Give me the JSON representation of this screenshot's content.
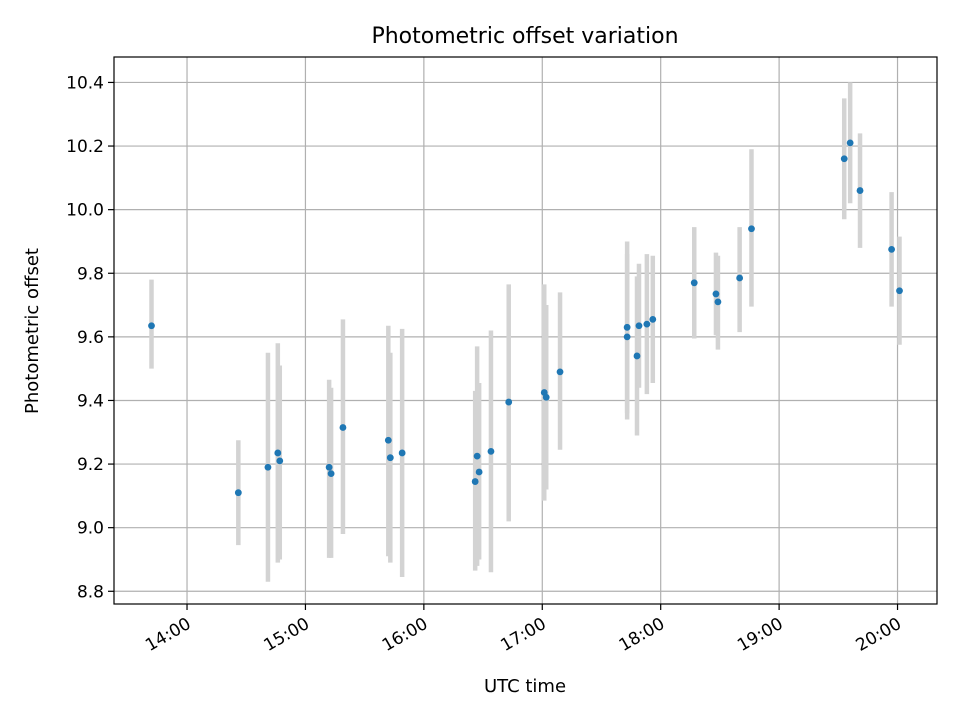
{
  "chart_data": {
    "type": "scatter",
    "title": "Photometric offset variation",
    "xlabel": "UTC time",
    "ylabel": "Photometric offset",
    "xlim": [
      "13:23",
      "20:20"
    ],
    "ylim": [
      8.76,
      10.48
    ],
    "xticks": [
      "14:00",
      "15:00",
      "16:00",
      "17:00",
      "18:00",
      "19:00",
      "20:00"
    ],
    "yticks": [
      "8.8",
      "9.0",
      "9.2",
      "9.4",
      "9.6",
      "9.8",
      "10.0",
      "10.2",
      "10.4"
    ],
    "grid": true,
    "colors": {
      "marker": "#1f77b4",
      "errorbar": "#d3d3d3",
      "grid": "#b0b0b0"
    },
    "points": [
      {
        "x": "13:42",
        "y": 9.635,
        "lo": 9.5,
        "hi": 9.78
      },
      {
        "x": "14:26",
        "y": 9.11,
        "lo": 8.945,
        "hi": 9.275
      },
      {
        "x": "14:41",
        "y": 9.19,
        "lo": 8.83,
        "hi": 9.55
      },
      {
        "x": "14:46",
        "y": 9.235,
        "lo": 8.89,
        "hi": 9.58
      },
      {
        "x": "14:47",
        "y": 9.21,
        "lo": 8.9,
        "hi": 9.51
      },
      {
        "x": "15:12",
        "y": 9.19,
        "lo": 8.905,
        "hi": 9.465
      },
      {
        "x": "15:13",
        "y": 9.17,
        "lo": 8.905,
        "hi": 9.44
      },
      {
        "x": "15:19",
        "y": 9.315,
        "lo": 8.98,
        "hi": 9.655
      },
      {
        "x": "15:42",
        "y": 9.275,
        "lo": 8.91,
        "hi": 9.635
      },
      {
        "x": "15:43",
        "y": 9.22,
        "lo": 8.89,
        "hi": 9.55
      },
      {
        "x": "15:49",
        "y": 9.235,
        "lo": 8.845,
        "hi": 9.625
      },
      {
        "x": "16:26",
        "y": 9.145,
        "lo": 8.865,
        "hi": 9.43
      },
      {
        "x": "16:27",
        "y": 9.225,
        "lo": 8.88,
        "hi": 9.57
      },
      {
        "x": "16:28",
        "y": 9.175,
        "lo": 8.9,
        "hi": 9.455
      },
      {
        "x": "16:34",
        "y": 9.24,
        "lo": 8.86,
        "hi": 9.62
      },
      {
        "x": "16:43",
        "y": 9.395,
        "lo": 9.02,
        "hi": 9.765
      },
      {
        "x": "17:01",
        "y": 9.425,
        "lo": 9.085,
        "hi": 9.765
      },
      {
        "x": "17:02",
        "y": 9.41,
        "lo": 9.12,
        "hi": 9.7
      },
      {
        "x": "17:09",
        "y": 9.49,
        "lo": 9.245,
        "hi": 9.74
      },
      {
        "x": "17:43",
        "y": 9.63,
        "lo": 9.36,
        "hi": 9.9
      },
      {
        "x": "17:43",
        "y": 9.6,
        "lo": 9.34,
        "hi": 9.86
      },
      {
        "x": "17:48",
        "y": 9.54,
        "lo": 9.29,
        "hi": 9.79
      },
      {
        "x": "17:49",
        "y": 9.635,
        "lo": 9.44,
        "hi": 9.83
      },
      {
        "x": "17:53",
        "y": 9.64,
        "lo": 9.42,
        "hi": 9.86
      },
      {
        "x": "17:56",
        "y": 9.655,
        "lo": 9.455,
        "hi": 9.855
      },
      {
        "x": "18:17",
        "y": 9.77,
        "lo": 9.595,
        "hi": 9.945
      },
      {
        "x": "18:28",
        "y": 9.735,
        "lo": 9.605,
        "hi": 9.865
      },
      {
        "x": "18:29",
        "y": 9.71,
        "lo": 9.56,
        "hi": 9.855
      },
      {
        "x": "18:40",
        "y": 9.785,
        "lo": 9.615,
        "hi": 9.945
      },
      {
        "x": "18:46",
        "y": 9.94,
        "lo": 9.695,
        "hi": 10.19
      },
      {
        "x": "19:33",
        "y": 10.16,
        "lo": 9.97,
        "hi": 10.35
      },
      {
        "x": "19:36",
        "y": 10.21,
        "lo": 10.02,
        "hi": 10.4
      },
      {
        "x": "19:41",
        "y": 10.06,
        "lo": 9.88,
        "hi": 10.24
      },
      {
        "x": "19:57",
        "y": 9.875,
        "lo": 9.695,
        "hi": 10.055
      },
      {
        "x": "20:01",
        "y": 9.745,
        "lo": 9.575,
        "hi": 9.915
      }
    ]
  }
}
